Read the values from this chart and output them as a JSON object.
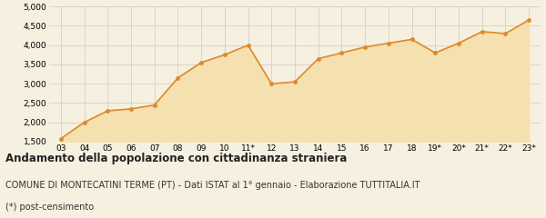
{
  "x_labels": [
    "03",
    "04",
    "05",
    "06",
    "07",
    "08",
    "09",
    "10",
    "11*",
    "12",
    "13",
    "14",
    "15",
    "16",
    "17",
    "18",
    "19*",
    "20*",
    "21*",
    "22*",
    "23*"
  ],
  "y_values": [
    1580,
    2000,
    2300,
    2350,
    2450,
    3150,
    3550,
    3750,
    4000,
    3000,
    3050,
    3650,
    3800,
    3950,
    4050,
    4150,
    3800,
    4050,
    4350,
    4300,
    4650
  ],
  "line_color": "#e08828",
  "fill_color": "#f5e0b0",
  "marker_color": "#e08828",
  "background_color": "#f5f0e0",
  "grid_color": "#d8d0c0",
  "ylim": [
    1500,
    5000
  ],
  "yticks": [
    1500,
    2000,
    2500,
    3000,
    3500,
    4000,
    4500,
    5000
  ],
  "title": "Andamento della popolazione con cittadinanza straniera",
  "subtitle": "COMUNE DI MONTECATINI TERME (PT) - Dati ISTAT al 1° gennaio - Elaborazione TUTTITALIA.IT",
  "footnote": "(*) post-censimento",
  "title_fontsize": 8.5,
  "subtitle_fontsize": 7.0,
  "footnote_fontsize": 7.0,
  "tick_fontsize": 6.5
}
